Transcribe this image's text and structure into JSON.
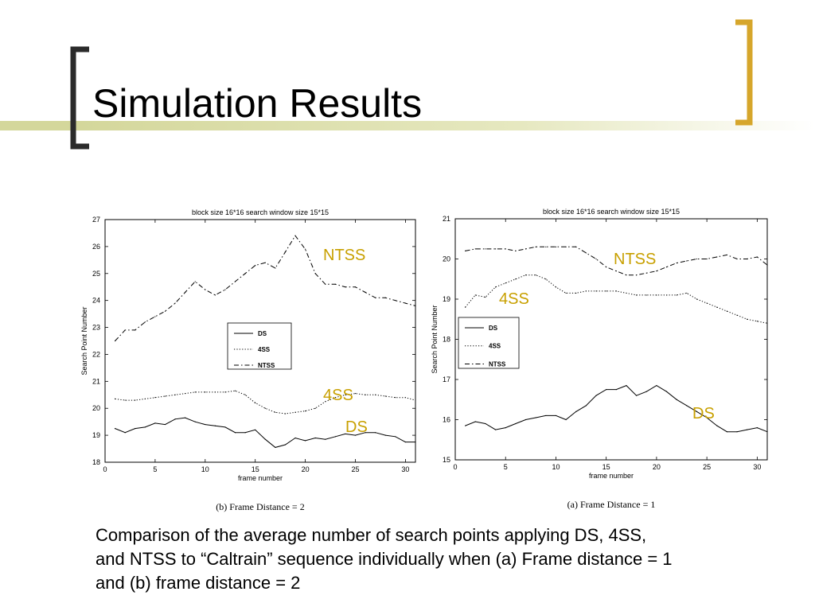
{
  "slide": {
    "title": "Simulation Results",
    "caption": "Comparison of the average number of search points applying DS, 4SS,\nand NTSS to “Caltrain” sequence individually when (a) Frame distance = 1\n and (b) frame distance = 2"
  },
  "colors": {
    "accent_bar": "#d4d79b",
    "bracket_left": "#2b2b2b",
    "bracket_right": "#d6a62b",
    "annotation": "#c8a000",
    "plot_line": "#000000"
  },
  "chart_data": [
    {
      "type": "line",
      "title": "block size 16*16    search window size 15*15",
      "caption": "(b) Frame Distance = 2",
      "xlabel": "frame number",
      "ylabel": "Search Point Number",
      "xlim": [
        0,
        31
      ],
      "ylim": [
        18,
        27
      ],
      "xticks": [
        0,
        5,
        10,
        15,
        20,
        25,
        30
      ],
      "yticks": [
        18,
        19,
        20,
        21,
        22,
        23,
        24,
        25,
        26,
        27
      ],
      "legend": {
        "placement": "center",
        "entries": [
          "DS",
          "4SS",
          "NTSS"
        ]
      },
      "annotations": [
        "NTSS",
        "4SS",
        "DS"
      ],
      "x": [
        1,
        2,
        3,
        4,
        5,
        6,
        7,
        8,
        9,
        10,
        11,
        12,
        13,
        14,
        15,
        16,
        17,
        18,
        19,
        20,
        21,
        22,
        23,
        24,
        25,
        26,
        27,
        28,
        29,
        30,
        31
      ],
      "series": [
        {
          "name": "DS",
          "style": "solid",
          "values": [
            19.25,
            19.1,
            19.25,
            19.3,
            19.45,
            19.4,
            19.6,
            19.65,
            19.5,
            19.4,
            19.35,
            19.3,
            19.1,
            19.1,
            19.2,
            18.85,
            18.55,
            18.65,
            18.9,
            18.8,
            18.9,
            18.85,
            18.95,
            19.05,
            19.0,
            19.1,
            19.1,
            19.0,
            18.95,
            18.75,
            18.75
          ]
        },
        {
          "name": "4SS",
          "style": "dotted",
          "values": [
            20.35,
            20.3,
            20.3,
            20.35,
            20.4,
            20.45,
            20.5,
            20.55,
            20.6,
            20.6,
            20.6,
            20.6,
            20.65,
            20.5,
            20.2,
            20.0,
            19.85,
            19.8,
            19.85,
            19.9,
            20.0,
            20.25,
            20.4,
            20.5,
            20.55,
            20.5,
            20.5,
            20.45,
            20.4,
            20.4,
            20.3
          ]
        },
        {
          "name": "NTSS",
          "style": "dashdot",
          "values": [
            22.5,
            22.9,
            22.9,
            23.2,
            23.4,
            23.6,
            23.9,
            24.3,
            24.7,
            24.4,
            24.2,
            24.4,
            24.7,
            25.0,
            25.3,
            25.4,
            25.2,
            25.8,
            26.4,
            25.9,
            25.0,
            24.6,
            24.6,
            24.5,
            24.5,
            24.3,
            24.1,
            24.1,
            24.0,
            23.9,
            23.8
          ]
        }
      ]
    },
    {
      "type": "line",
      "title": "block size 16*16    search window size 15*15",
      "caption": "(a) Frame Distance = 1",
      "xlabel": "frame number",
      "ylabel": "Search Point Number",
      "xlim": [
        0,
        31
      ],
      "ylim": [
        15,
        21
      ],
      "xticks": [
        0,
        5,
        10,
        15,
        20,
        25,
        30
      ],
      "yticks": [
        15,
        16,
        17,
        18,
        19,
        20,
        21
      ],
      "legend": {
        "placement": "center-right",
        "entries": [
          "DS",
          "4SS",
          "NTSS"
        ]
      },
      "annotations": [
        "NTSS",
        "4SS",
        "DS"
      ],
      "x": [
        1,
        2,
        3,
        4,
        5,
        6,
        7,
        8,
        9,
        10,
        11,
        12,
        13,
        14,
        15,
        16,
        17,
        18,
        19,
        20,
        21,
        22,
        23,
        24,
        25,
        26,
        27,
        28,
        29,
        30,
        31
      ],
      "series": [
        {
          "name": "DS",
          "style": "solid",
          "values": [
            15.85,
            15.95,
            15.9,
            15.75,
            15.8,
            15.9,
            16.0,
            16.05,
            16.1,
            16.1,
            16.0,
            16.2,
            16.35,
            16.6,
            16.75,
            16.75,
            16.85,
            16.6,
            16.7,
            16.85,
            16.7,
            16.5,
            16.35,
            16.2,
            16.05,
            15.85,
            15.7,
            15.7,
            15.75,
            15.8,
            15.7
          ]
        },
        {
          "name": "4SS",
          "style": "dotted",
          "values": [
            18.8,
            19.1,
            19.05,
            19.3,
            19.4,
            19.5,
            19.6,
            19.6,
            19.5,
            19.3,
            19.15,
            19.15,
            19.2,
            19.2,
            19.2,
            19.2,
            19.15,
            19.1,
            19.1,
            19.1,
            19.1,
            19.1,
            19.15,
            19.0,
            18.9,
            18.8,
            18.7,
            18.6,
            18.5,
            18.45,
            18.4
          ]
        },
        {
          "name": "NTSS",
          "style": "dashdot",
          "values": [
            20.2,
            20.25,
            20.25,
            20.25,
            20.25,
            20.2,
            20.25,
            20.3,
            20.3,
            20.3,
            20.3,
            20.3,
            20.15,
            20.0,
            19.8,
            19.7,
            19.6,
            19.6,
            19.65,
            19.7,
            19.8,
            19.9,
            19.95,
            20.0,
            20.0,
            20.05,
            20.1,
            20.0,
            20.0,
            20.05,
            19.85
          ]
        }
      ]
    }
  ]
}
